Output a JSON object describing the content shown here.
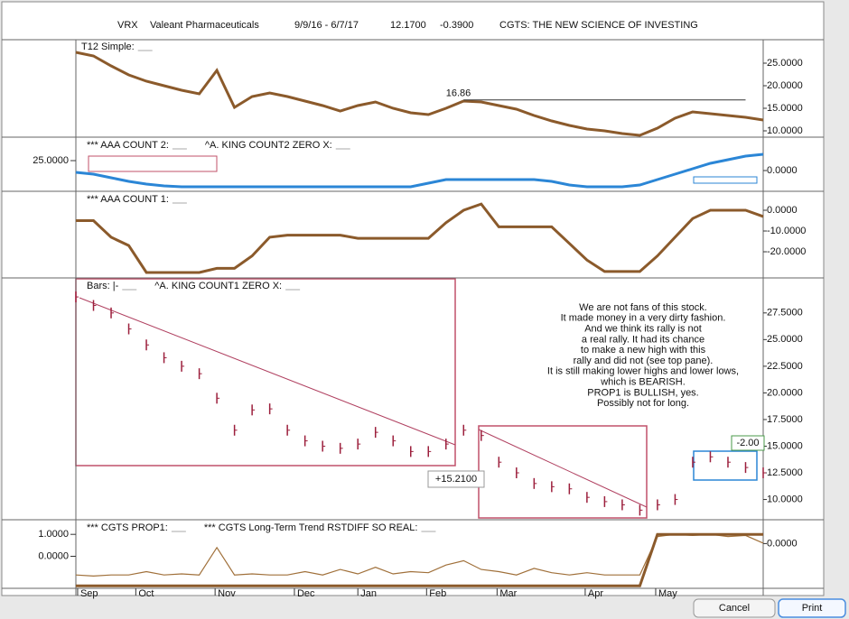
{
  "header": {
    "symbol": "VRX",
    "name": "Valeant Pharmaceuticals",
    "dates": "9/9/16 - 6/7/17",
    "price": "12.1700",
    "change": "-0.3900",
    "title": "CGTS: THE NEW SCIENCE OF INVESTING"
  },
  "buttons": {
    "cancel": "Cancel",
    "print": "Print"
  },
  "chart_data": [
    {
      "type": "line",
      "labels": [
        "T12 Simple:"
      ],
      "x": [
        0,
        1,
        2,
        3,
        4,
        5,
        6,
        7,
        8,
        9,
        10,
        11,
        12,
        13,
        14,
        15,
        16,
        17,
        18,
        19,
        20,
        21,
        22,
        23,
        24,
        25,
        26,
        27,
        28,
        29,
        30,
        31,
        32,
        33,
        34,
        35,
        36,
        37,
        38,
        39
      ],
      "xlim": [
        0,
        39
      ],
      "ylim": [
        8.6,
        30.2
      ],
      "yticks": [
        {
          "value": 10,
          "label": "10.0000"
        },
        {
          "value": 15,
          "label": "15.0000"
        },
        {
          "value": 20,
          "label": "20.0000"
        },
        {
          "value": 25,
          "label": "25.0000"
        }
      ],
      "series": [
        {
          "name": "T12 Simple:",
          "color": "#8b5a2b",
          "values": [
            27.4,
            26.6,
            24.4,
            22.4,
            21,
            20,
            19,
            18.2,
            23.4,
            15.2,
            17.6,
            18.4,
            17.6,
            16.6,
            15.6,
            14.4,
            15.6,
            16.4,
            15,
            14,
            13.6,
            15,
            16.6,
            16.4,
            15.6,
            14.8,
            13.4,
            12.2,
            11.2,
            10.4,
            10,
            9.4,
            9,
            10.6,
            12.8,
            14.2,
            13.8,
            13.4,
            13,
            12.4
          ]
        }
      ],
      "annotations": [
        {
          "text": "16.86",
          "value": 16.86
        }
      ]
    },
    {
      "type": "line",
      "labels": [
        "***  AAA COUNT 2:",
        "^A. KING COUNT2 ZERO X:"
      ],
      "x": [
        0,
        1,
        2,
        3,
        4,
        5,
        6,
        7,
        8,
        9,
        10,
        11,
        12,
        13,
        14,
        15,
        16,
        17,
        18,
        19,
        20,
        21,
        22,
        23,
        24,
        25,
        26,
        27,
        28,
        29,
        30,
        31,
        32,
        33,
        34,
        35,
        36,
        37,
        38,
        39
      ],
      "xlim": [
        0,
        39
      ],
      "ylim": [
        -23,
        36
      ],
      "yticks": [
        {
          "value": 0,
          "label": "0.0000"
        }
      ],
      "y2lim": [
        0,
        43.4
      ],
      "y2ticks": [
        {
          "value": 25,
          "label": "25.0000"
        }
      ],
      "series": [
        {
          "name": "***  AAA COUNT 2:",
          "color": "#2b86d6",
          "values": [
            -2,
            -4,
            -8,
            -12,
            -15,
            -17,
            -18,
            -18,
            -18,
            -18,
            -18,
            -18,
            -18,
            -18,
            -18,
            -18,
            -18,
            -18,
            -18,
            -18,
            -14,
            -10,
            -10,
            -10,
            -10,
            -10,
            -10,
            -12,
            -16,
            -18,
            -18,
            -18,
            -16,
            -10,
            -4,
            2,
            8,
            12,
            16,
            18
          ]
        }
      ]
    },
    {
      "type": "line",
      "labels": [
        "***  AAA COUNT 1:"
      ],
      "x": [
        0,
        1,
        2,
        3,
        4,
        5,
        6,
        7,
        8,
        9,
        10,
        11,
        12,
        13,
        14,
        15,
        16,
        17,
        18,
        19,
        20,
        21,
        22,
        23,
        24,
        25,
        26,
        27,
        28,
        29,
        30,
        31,
        32,
        33,
        34,
        35,
        36,
        37,
        38,
        39
      ],
      "xlim": [
        0,
        39
      ],
      "ylim": [
        -32.6,
        8.7
      ],
      "yticks": [
        {
          "value": -20,
          "label": "-20.0000"
        },
        {
          "value": -10,
          "label": "-10.0000"
        },
        {
          "value": 0,
          "label": "0.0000"
        }
      ],
      "series": [
        {
          "name": "***  AAA COUNT 1:",
          "color": "#8b5a2b",
          "values": [
            -5,
            -5,
            -13,
            -17,
            -30,
            -30,
            -30,
            -30,
            -28,
            -28,
            -22,
            -13,
            -12,
            -12,
            -12,
            -12,
            -13.5,
            -13.5,
            -13.5,
            -13.5,
            -13.5,
            -6,
            0,
            3,
            -8,
            -8,
            -8,
            -8,
            -16,
            -24,
            -29.5,
            -29.5,
            -29.5,
            -22,
            -13,
            -4,
            0,
            0,
            0,
            -3
          ]
        }
      ]
    },
    {
      "type": "bars",
      "labels": [
        "Bars: |-",
        "^A. KING COUNT1 ZERO X:"
      ],
      "x": [
        0,
        1,
        2,
        3,
        4,
        5,
        6,
        7,
        8,
        9,
        10,
        11,
        12,
        13,
        14,
        15,
        16,
        17,
        18,
        19,
        20,
        21,
        22,
        23,
        24,
        25,
        26,
        27,
        28,
        29,
        30,
        31,
        32,
        33,
        34,
        35,
        36,
        37,
        38,
        39
      ],
      "xlim": [
        0,
        39
      ],
      "ylim": [
        8.1,
        30.7
      ],
      "yticks": [
        {
          "value": 10,
          "label": "10.0000"
        },
        {
          "value": 12.5,
          "label": "12.5000"
        },
        {
          "value": 15,
          "label": "15.0000"
        },
        {
          "value": 17.5,
          "label": "17.5000"
        },
        {
          "value": 20,
          "label": "20.0000"
        },
        {
          "value": 22.5,
          "label": "22.5000"
        },
        {
          "value": 25,
          "label": "25.0000"
        },
        {
          "value": 27.5,
          "label": "27.5000"
        }
      ],
      "series": [
        {
          "name": "Bars: |-",
          "color": "#9c1f3c",
          "values": [
            29,
            28.2,
            27.5,
            26,
            24.5,
            23.3,
            22.5,
            21.8,
            19.5,
            16.5,
            18.4,
            18.5,
            16.5,
            15.5,
            15,
            14.8,
            15.2,
            16.3,
            15.5,
            14.5,
            14.5,
            15.2,
            16.5,
            16,
            13.5,
            12.5,
            11.5,
            11.2,
            11,
            10.2,
            9.8,
            9.5,
            9,
            9.5,
            10,
            13.5,
            14,
            13.5,
            13,
            12.5
          ]
        }
      ],
      "annotations": [
        {
          "text": "+15.2100"
        },
        {
          "text": "-2.00"
        }
      ],
      "note": [
        "We are not fans of this stock.",
        "It made money in a very dirty fashion.",
        "And we think its rally is not",
        "a real rally.  It had its chance",
        "to make a new high with this",
        "rally and did not (see top pane).",
        "It is still making lower highs and lower lows,",
        "which is BEARISH.",
        "PROP1 is BULLISH, yes.",
        "Possibly not for long."
      ]
    },
    {
      "type": "line",
      "labels": [
        "*** CGTS PROP1:",
        "*** CGTS Long-Term Trend RSTDIFF SO REAL:"
      ],
      "x": [
        0,
        1,
        2,
        3,
        4,
        5,
        6,
        7,
        8,
        9,
        10,
        11,
        12,
        13,
        14,
        15,
        16,
        17,
        18,
        19,
        20,
        21,
        22,
        23,
        24,
        25,
        26,
        27,
        28,
        29,
        30,
        31,
        32,
        33,
        34,
        35,
        36,
        37,
        38,
        39
      ],
      "xlim": [
        0,
        39
      ],
      "ylim": [
        -1.46,
        1.625
      ],
      "y2lim": [
        -2.05,
        1.05
      ],
      "y2ticks": [
        {
          "value": 0,
          "label": "0.0000"
        }
      ],
      "yticks": [
        {
          "value": 0,
          "label": "0.0000"
        },
        {
          "value": 1,
          "label": "1.0000"
        }
      ],
      "xticks": [
        {
          "value": 0.1,
          "label": "Sep"
        },
        {
          "value": 3.4,
          "label": "Oct"
        },
        {
          "value": 7.9,
          "label": "Nov"
        },
        {
          "value": 12.4,
          "label": "Dec"
        },
        {
          "value": 16,
          "label": "Jan"
        },
        {
          "value": 19.9,
          "label": "Feb"
        },
        {
          "value": 23.9,
          "label": "Mar"
        },
        {
          "value": 28.9,
          "label": "Apr"
        },
        {
          "value": 32.9,
          "label": "May"
        }
      ],
      "series": [
        {
          "name": "*** CGTS PROP1:",
          "color": "#a0703a",
          "values": [
            -0.85,
            -0.9,
            -0.85,
            -0.85,
            -0.7,
            -0.85,
            -0.8,
            -0.85,
            0.4,
            -0.85,
            -0.8,
            -0.85,
            -0.85,
            -0.7,
            -0.85,
            -0.6,
            -0.8,
            -0.5,
            -0.8,
            -0.7,
            -0.75,
            -0.4,
            -0.2,
            -0.6,
            -0.7,
            -0.85,
            -0.55,
            -0.75,
            -0.85,
            -0.75,
            -0.85,
            -0.85,
            -0.85,
            0.9,
            1.0,
            0.95,
            1.0,
            0.9,
            0.95,
            0.6
          ]
        },
        {
          "name": "*** CGTS Long-Term Trend RSTDIFF SO REAL:",
          "color": "#8b5a2b",
          "values": [
            -1.35,
            -1.35,
            -1.35,
            -1.35,
            -1.35,
            -1.35,
            -1.35,
            -1.35,
            -1.35,
            -1.35,
            -1.35,
            -1.35,
            -1.35,
            -1.35,
            -1.35,
            -1.35,
            -1.35,
            -1.35,
            -1.35,
            -1.35,
            -1.35,
            -1.35,
            -1.35,
            -1.35,
            -1.35,
            -1.35,
            -1.35,
            -1.35,
            -1.35,
            -1.35,
            -1.35,
            -1.35,
            -1.35,
            1.0,
            1.0,
            1.0,
            1.0,
            1.0,
            1.0,
            1.0
          ]
        }
      ]
    }
  ]
}
